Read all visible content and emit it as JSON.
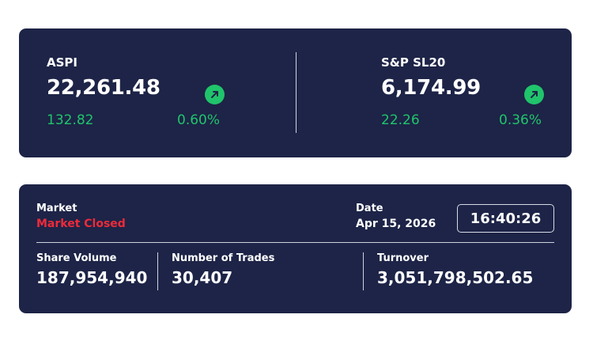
{
  "colors": {
    "card_bg": "#1d2447",
    "positive": "#20c46b",
    "negative": "#ee2a3a",
    "text": "#ffffff"
  },
  "indices": [
    {
      "name": "ASPI",
      "value": "22,261.48",
      "change": "132.82",
      "change_pct": "0.60%",
      "trend_icon": "arrow-up-right-icon"
    },
    {
      "name": "S&P SL20",
      "value": "6,174.99",
      "change": "22.26",
      "change_pct": "0.36%",
      "trend_icon": "arrow-up-right-icon"
    }
  ],
  "market": {
    "label": "Market",
    "status": "Market Closed",
    "date_label": "Date",
    "date": "Apr 15, 2026",
    "time": "16:40:26"
  },
  "stats": {
    "share_volume_label": "Share Volume",
    "share_volume": "187,954,940",
    "trades_label": "Number of Trades",
    "trades": "30,407",
    "turnover_label": "Turnover",
    "turnover": "3,051,798,502.65"
  }
}
